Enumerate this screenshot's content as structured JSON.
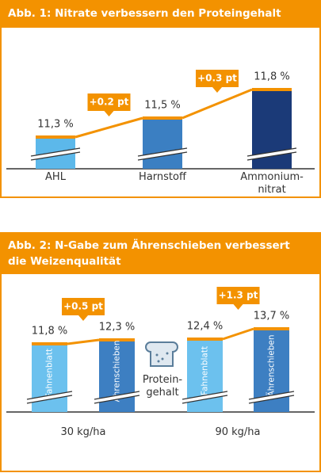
{
  "chart_data": [
    {
      "type": "bar",
      "title": "Abb. 1: Nitrate verbessern den Proteingehalt",
      "categories": [
        "AHL",
        "Harnstoff",
        "Ammonium-nitrat"
      ],
      "values": [
        11.3,
        11.5,
        11.8
      ],
      "value_labels": [
        "11,3 %",
        "11,5 %",
        "11,8 %"
      ],
      "colors": [
        "#5cb8ea",
        "#3b7fc2",
        "#1b3a78"
      ],
      "cap_color": "#f39200",
      "annotations": [
        "+0.2 pt",
        "+0.3 pt"
      ],
      "ylim": [
        10.95,
        12.0
      ]
    },
    {
      "type": "grouped_bar",
      "title": "Abb. 2: N-Gabe zum Ährenschieben verbessert die Weizenqualität",
      "categories": [
        "30 kg/ha",
        "90 kg/ha"
      ],
      "series": [
        {
          "name": "Fahnenblatt",
          "color": "#6cc1ee",
          "values": [
            11.8,
            12.4
          ],
          "value_labels": [
            "11,8 %",
            "12,4 %"
          ]
        },
        {
          "name": "Ährenschieben",
          "color": "#3d7fc2",
          "values": [
            12.3,
            13.7
          ],
          "value_labels": [
            "12,3 %",
            "13,7 %"
          ]
        }
      ],
      "cap_color": "#f39200",
      "annotations": [
        "+0.5 pt",
        "+1.3 pt"
      ],
      "note": "Protein-gehalt",
      "ylim": [
        3,
        14.5
      ]
    }
  ]
}
